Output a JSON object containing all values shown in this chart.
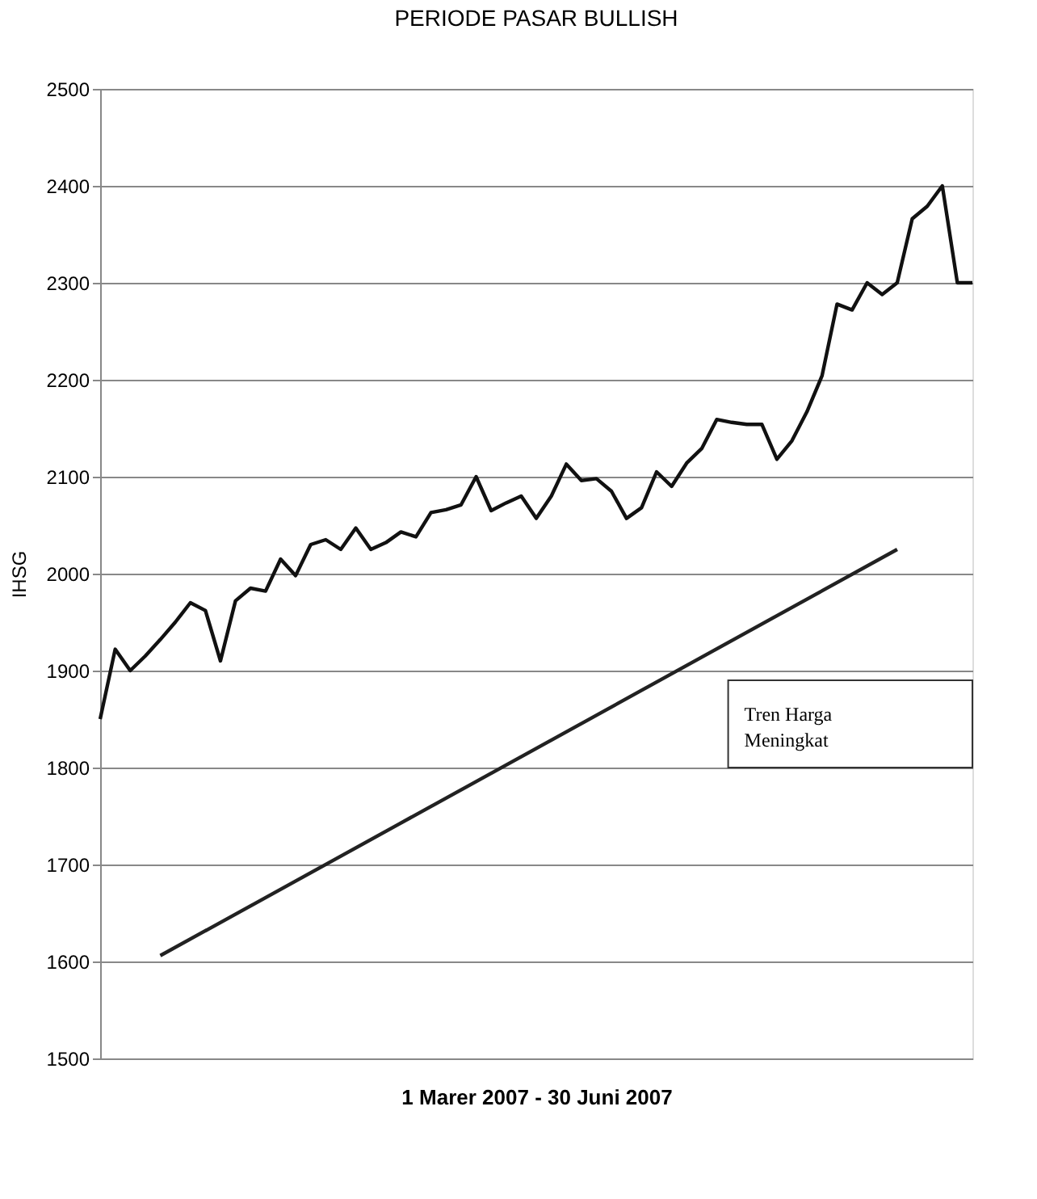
{
  "chart_data": {
    "type": "line",
    "title": "PERIODE PASAR BULLISH",
    "xlabel": "1 Marer 2007 - 30 Juni 2007",
    "ylabel": "IHSG",
    "categories": [
      null,
      null,
      null,
      null,
      null,
      null,
      null,
      null,
      null,
      null,
      null,
      null,
      null,
      null,
      null,
      null,
      null,
      null,
      null,
      null,
      null,
      null,
      null,
      null,
      null,
      null,
      null,
      null,
      null,
      null,
      null,
      null,
      null,
      null,
      null,
      null,
      null,
      null,
      null,
      null,
      null,
      null,
      null,
      null,
      null,
      null,
      null,
      null,
      null,
      null,
      null,
      null,
      null,
      null,
      null,
      null,
      null,
      null,
      null
    ],
    "series": [
      {
        "color": "#111111",
        "values": [
          1850,
          1922,
          1900,
          1915,
          1932,
          1950,
          1970,
          1962,
          1910,
          1972,
          1985,
          1982,
          2015,
          1998,
          2030,
          2035,
          2025,
          2047,
          2025,
          2032,
          2043,
          2038,
          2063,
          2066,
          2071,
          2100,
          2065,
          2073,
          2080,
          2057,
          2080,
          2113,
          2096,
          2098,
          2085,
          2057,
          2068,
          2105,
          2090,
          2114,
          2129,
          2159,
          2156,
          2154,
          2154,
          2118,
          2137,
          2167,
          2204,
          2278,
          2272,
          2300,
          2288,
          2300,
          2366,
          2379,
          2400,
          2300,
          2300
        ]
      },
      {
        "type": "line",
        "color": "#222222",
        "values": [
          null,
          null,
          null,
          null,
          1606,
          null,
          null,
          null,
          null,
          null,
          null,
          null,
          null,
          null,
          null,
          null,
          null,
          null,
          null,
          null,
          null,
          null,
          null,
          null,
          null,
          null,
          null,
          null,
          null,
          null,
          null,
          null,
          null,
          null,
          null,
          null,
          null,
          null,
          null,
          null,
          null,
          null,
          null,
          null,
          null,
          null,
          null,
          null,
          null,
          null,
          null,
          null,
          null,
          2025,
          null,
          null,
          null,
          null,
          null
        ]
      }
    ],
    "ylim": [
      1500,
      2500
    ],
    "yticks": [
      1500,
      1600,
      1700,
      1800,
      1900,
      2000,
      2100,
      2200,
      2300,
      2400,
      2500
    ],
    "grid": "y",
    "tick_labels": "y",
    "annotations": [
      "Tren Harga Meningkat"
    ]
  }
}
